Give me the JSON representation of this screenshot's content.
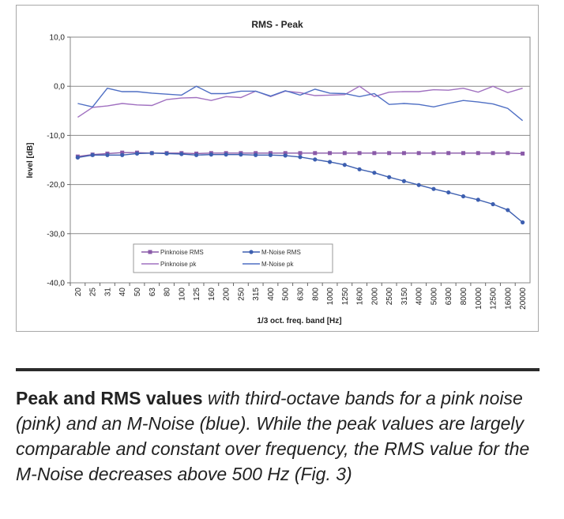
{
  "chart_data": {
    "type": "line",
    "title": "RMS - Peak",
    "xlabel": "1/3 oct. freq. band [Hz]",
    "ylabel": "level [dB]",
    "ylim": [
      -40,
      10
    ],
    "yticks": [
      "10,0",
      "0,0",
      "-10,0",
      "-20,0",
      "-30,0",
      "-40,0"
    ],
    "ytick_values": [
      10,
      0,
      -10,
      -20,
      -30,
      -40
    ],
    "grid": "horizontal",
    "legend_position": "bottom-center",
    "categories": [
      "20",
      "25",
      "31",
      "40",
      "50",
      "63",
      "80",
      "100",
      "125",
      "160",
      "200",
      "250",
      "315",
      "400",
      "500",
      "630",
      "800",
      "1000",
      "1250",
      "1600",
      "2000",
      "2500",
      "3150",
      "4000",
      "5000",
      "6300",
      "8000",
      "10000",
      "12500",
      "16000",
      "20000"
    ],
    "series": [
      {
        "name": "Pinknoise RMS",
        "color": "#8a5aa8",
        "marker": "square",
        "values": [
          -14.3,
          -13.9,
          -13.7,
          -13.5,
          -13.5,
          -13.6,
          -13.6,
          -13.6,
          -13.7,
          -13.6,
          -13.6,
          -13.6,
          -13.6,
          -13.6,
          -13.6,
          -13.6,
          -13.6,
          -13.6,
          -13.6,
          -13.6,
          -13.6,
          -13.6,
          -13.6,
          -13.6,
          -13.6,
          -13.6,
          -13.6,
          -13.6,
          -13.6,
          -13.6,
          -13.7
        ]
      },
      {
        "name": "M-Noise RMS",
        "color": "#3d5fb0",
        "marker": "circle",
        "values": [
          -14.5,
          -14.0,
          -14.0,
          -14.0,
          -13.7,
          -13.6,
          -13.7,
          -13.8,
          -14.0,
          -13.9,
          -13.9,
          -13.9,
          -14.0,
          -14.0,
          -14.1,
          -14.4,
          -14.9,
          -15.4,
          -16.0,
          -16.9,
          -17.6,
          -18.5,
          -19.3,
          -20.1,
          -20.9,
          -21.6,
          -22.4,
          -23.1,
          -24.0,
          -25.2,
          -27.7
        ]
      },
      {
        "name": "Pinknoise pk",
        "color": "#a070c0",
        "marker": "none",
        "values": [
          -6.3,
          -4.3,
          -4.0,
          -3.5,
          -3.8,
          -3.9,
          -2.7,
          -2.4,
          -2.3,
          -2.9,
          -2.1,
          -2.3,
          -1.0,
          -2.1,
          -1.0,
          -1.3,
          -1.9,
          -1.8,
          -1.7,
          0.0,
          -2.1,
          -1.2,
          -1.1,
          -1.1,
          -0.7,
          -0.8,
          -0.4,
          -1.2,
          0.0,
          -1.3,
          -0.4
        ]
      },
      {
        "name": "M-Noise pk",
        "color": "#4f6fc4",
        "marker": "none",
        "values": [
          -3.5,
          -4.2,
          -0.4,
          -1.1,
          -1.1,
          -1.4,
          -1.6,
          -1.8,
          0.0,
          -1.5,
          -1.5,
          -1.0,
          -1.0,
          -2.0,
          -0.9,
          -1.8,
          -0.6,
          -1.4,
          -1.5,
          -2.1,
          -1.5,
          -3.7,
          -3.5,
          -3.7,
          -4.2,
          -3.5,
          -2.9,
          -3.2,
          -3.6,
          -4.5,
          -7.0
        ]
      }
    ]
  },
  "caption": {
    "bold": "Peak and RMS values",
    "italic": " with third-octave bands for a pink noise (pink) and an M-Noise (blue). While the peak values are largely comparable and constant over frequency, the RMS value for the M-Noise decreases above 500 Hz (Fig. 3)"
  }
}
